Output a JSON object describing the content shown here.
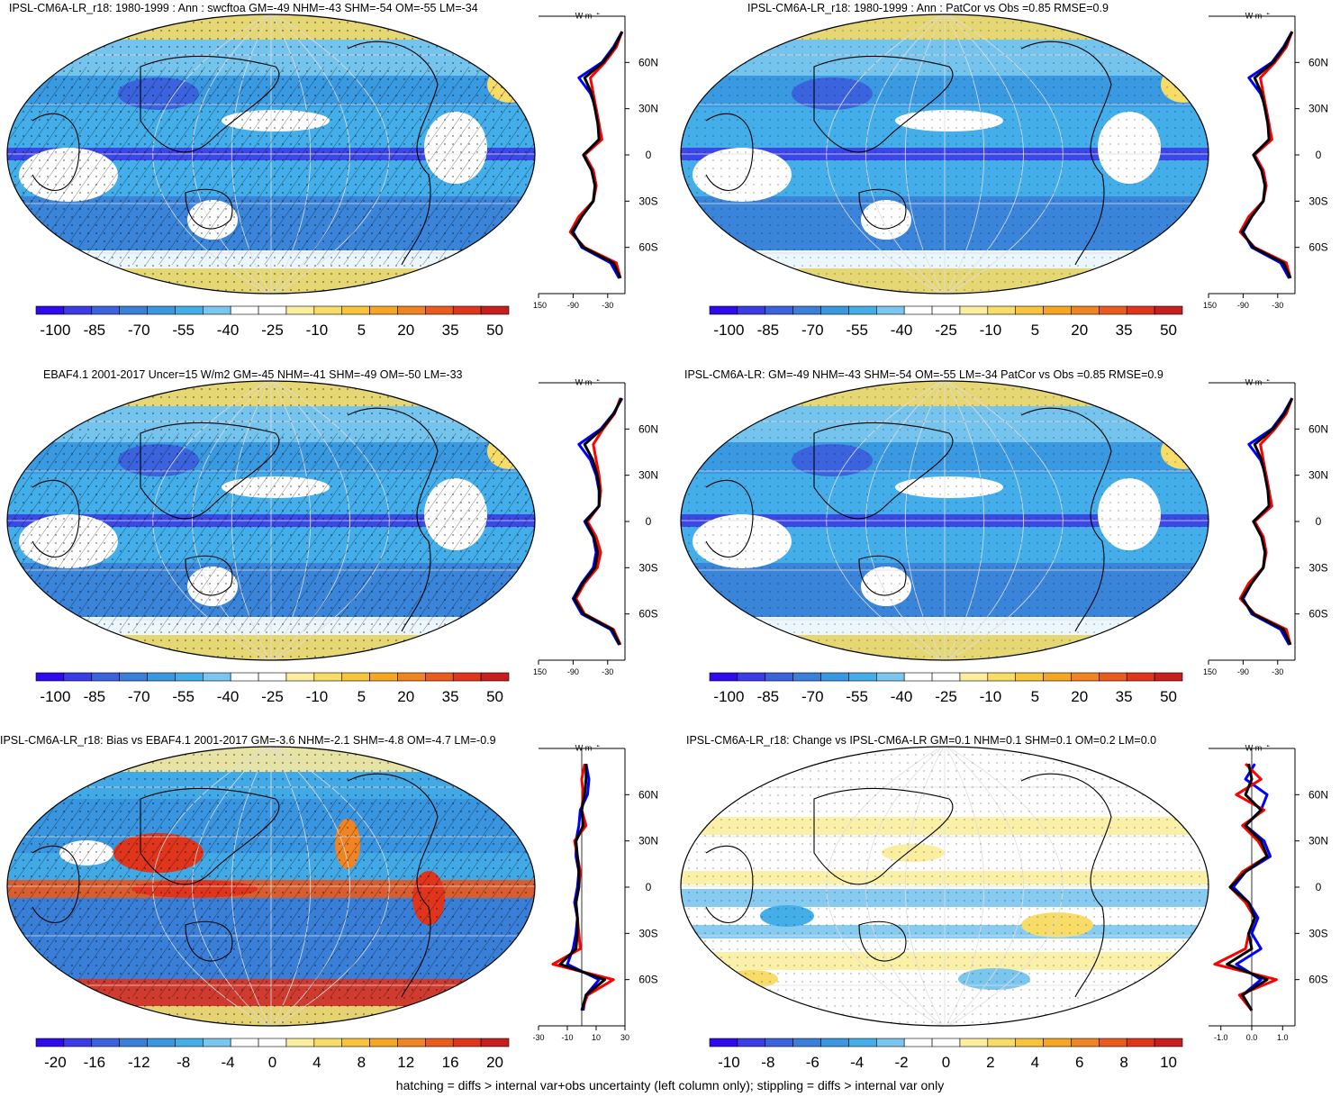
{
  "colors": {
    "ramp": [
      "#2e0aec",
      "#3b3ce6",
      "#3b63dd",
      "#3a7fd8",
      "#3a98e0",
      "#44aee9",
      "#7ac6ee",
      "#ffffff",
      "#ffffff",
      "#fbee9e",
      "#f8dc68",
      "#f8c43c",
      "#f5a623",
      "#f08322",
      "#ea5b1e",
      "#e0351d",
      "#c81e1e"
    ],
    "model_line": "#ff0000",
    "obs_line": "#0000ff",
    "mean_line": "#000000"
  },
  "footnote": "hatching = diffs > internal var+obs uncertainty (left column only); stippling = diffs > internal var only",
  "panels": [
    {
      "title": "IPSL-CM6A-LR_r18: 1980-1999 : Ann : swcftoa GM=-49 NHM=-43 SHM=-54 OM=-55 LM=-34",
      "unit": "W m",
      "unit_sup": "-2",
      "lat_labels": [
        "60N",
        "30N",
        "0",
        "30S",
        "60S"
      ],
      "x_ticks": [
        "-150",
        "-90",
        "-30"
      ],
      "cbar_labels": [
        "-100",
        "-85",
        "-70",
        "-55",
        "-40",
        "-25",
        "-10",
        "5",
        "20",
        "35",
        "50"
      ]
    },
    {
      "title": "IPSL-CM6A-LR_r18: 1980-1999 : Ann : PatCor vs Obs =0.85 RMSE=0.9",
      "unit": "W m",
      "unit_sup": "-2",
      "lat_labels": [
        "60N",
        "30N",
        "0",
        "30S",
        "60S"
      ],
      "x_ticks": [
        "-150",
        "-90",
        "-30"
      ],
      "cbar_labels": [
        "-100",
        "-85",
        "-70",
        "-55",
        "-40",
        "-25",
        "-10",
        "5",
        "20",
        "35",
        "50"
      ]
    },
    {
      "title": "EBAF4.1 2001-2017 Uncer=15 W/m2 GM=-45 NHM=-41 SHM=-49 OM=-50 LM=-33",
      "unit": "W m",
      "unit_sup": "-2",
      "lat_labels": [
        "60N",
        "30N",
        "0",
        "30S",
        "60S"
      ],
      "x_ticks": [
        "-150",
        "-90",
        "-30"
      ],
      "cbar_labels": [
        "-100",
        "-85",
        "-70",
        "-55",
        "-40",
        "-25",
        "-10",
        "5",
        "20",
        "35",
        "50"
      ]
    },
    {
      "title": "IPSL-CM6A-LR: GM=-49 NHM=-43 SHM=-54 OM=-55 LM=-34 PatCor vs Obs =0.85 RMSE=0.9",
      "unit": "W m",
      "unit_sup": "-2",
      "lat_labels": [
        "60N",
        "30N",
        "0",
        "30S",
        "60S"
      ],
      "x_ticks": [
        "-150",
        "-90",
        "-30"
      ],
      "cbar_labels": [
        "-100",
        "-85",
        "-70",
        "-55",
        "-40",
        "-25",
        "-10",
        "5",
        "20",
        "35",
        "50"
      ]
    },
    {
      "title": "IPSL-CM6A-LR_r18: Bias vs EBAF4.1 2001-2017 GM=-3.6 NHM=-2.1 SHM=-4.8 OM=-4.7 LM=-0.9",
      "unit": "W m",
      "unit_sup": "-2",
      "lat_labels": [
        "60N",
        "30N",
        "0",
        "30S",
        "60S"
      ],
      "x_ticks": [
        "-30",
        "-10",
        "10",
        "30"
      ],
      "cbar_labels": [
        "-20",
        "-16",
        "-12",
        "-8",
        "-4",
        "0",
        "4",
        "8",
        "12",
        "16",
        "20"
      ]
    },
    {
      "title": "IPSL-CM6A-LR_r18: Change vs IPSL-CM6A-LR GM=0.1 NHM=0.1 SHM=0.1 OM=0.2 LM=0.0",
      "unit": "W m",
      "unit_sup": "-2",
      "lat_labels": [
        "60N",
        "30N",
        "0",
        "30S",
        "60S"
      ],
      "x_ticks": [
        "-1.0",
        "0.0",
        "1.0"
      ],
      "cbar_labels": [
        "-10",
        "-8",
        "-6",
        "-4",
        "-2",
        "0",
        "2",
        "4",
        "6",
        "8",
        "10"
      ]
    }
  ],
  "chart_data": [
    {
      "type": "heatmap",
      "panel": 1,
      "title": "IPSL-CM6A-LR_r18: 1980-1999 : Ann : swcftoa GM=-49 NHM=-43 SHM=-54 OM=-55 LM=-34",
      "colorbar_range": [
        -100,
        50
      ],
      "colorbar_ticks": [
        -100,
        -85,
        -70,
        -55,
        -40,
        -25,
        -10,
        5,
        20,
        35,
        50
      ],
      "zonal_mean": {
        "xlim": [
          -150,
          0
        ],
        "lat": [
          80,
          70,
          60,
          50,
          40,
          30,
          20,
          10,
          0,
          -10,
          -20,
          -30,
          -40,
          -50,
          -60,
          -70,
          -80
        ],
        "model": [
          -5,
          -15,
          -35,
          -60,
          -55,
          -50,
          -45,
          -40,
          -70,
          -55,
          -50,
          -55,
          -80,
          -95,
          -70,
          -15,
          -8
        ],
        "obs": [
          -5,
          -20,
          -40,
          -80,
          -60,
          -50,
          -45,
          -45,
          -70,
          -55,
          -50,
          -55,
          -75,
          -90,
          -75,
          -25,
          -10
        ],
        "mean": [
          -5,
          -18,
          -38,
          -70,
          -58,
          -52,
          -47,
          -45,
          -72,
          -58,
          -52,
          -55,
          -75,
          -92,
          -72,
          -20,
          -8
        ]
      }
    },
    {
      "type": "heatmap",
      "panel": 2,
      "title": "IPSL-CM6A-LR_r18: 1980-1999 : Ann : PatCor vs Obs =0.85 RMSE=0.9",
      "colorbar_range": [
        -100,
        50
      ],
      "colorbar_ticks": [
        -100,
        -85,
        -70,
        -55,
        -40,
        -25,
        -10,
        5,
        20,
        35,
        50
      ],
      "zonal_mean": {
        "xlim": [
          -150,
          0
        ],
        "lat": [
          80,
          70,
          60,
          50,
          40,
          30,
          20,
          10,
          0,
          -10,
          -20,
          -30,
          -40,
          -50,
          -60,
          -70,
          -80
        ],
        "model": [
          -5,
          -15,
          -35,
          -60,
          -55,
          -50,
          -45,
          -40,
          -70,
          -55,
          -50,
          -55,
          -80,
          -95,
          -70,
          -15,
          -8
        ],
        "obs": [
          -5,
          -20,
          -40,
          -80,
          -60,
          -50,
          -45,
          -45,
          -70,
          -55,
          -50,
          -55,
          -75,
          -90,
          -75,
          -25,
          -10
        ],
        "mean": [
          -5,
          -18,
          -38,
          -70,
          -58,
          -52,
          -47,
          -45,
          -72,
          -58,
          -52,
          -55,
          -75,
          -92,
          -72,
          -20,
          -8
        ]
      }
    },
    {
      "type": "heatmap",
      "panel": 3,
      "title": "EBAF4.1 2001-2017 Uncer=15 W/m2 GM=-45 NHM=-41 SHM=-49 OM=-50 LM=-33",
      "colorbar_range": [
        -100,
        50
      ],
      "colorbar_ticks": [
        -100,
        -85,
        -70,
        -55,
        -40,
        -25,
        -10,
        5,
        20,
        35,
        50
      ],
      "zonal_mean": {
        "xlim": [
          -150,
          0
        ],
        "lat": [
          80,
          70,
          60,
          50,
          40,
          30,
          20,
          10,
          0,
          -10,
          -20,
          -30,
          -40,
          -50,
          -60,
          -70,
          -80
        ],
        "model": [
          -8,
          -18,
          -38,
          -55,
          -50,
          -45,
          -42,
          -45,
          -65,
          -50,
          -42,
          -48,
          -70,
          -85,
          -70,
          -20,
          -8
        ],
        "obs": [
          -5,
          -20,
          -42,
          -80,
          -60,
          -50,
          -45,
          -45,
          -70,
          -55,
          -50,
          -55,
          -75,
          -90,
          -75,
          -25,
          -10
        ],
        "mean": [
          -6,
          -19,
          -40,
          -70,
          -56,
          -48,
          -44,
          -45,
          -68,
          -54,
          -47,
          -52,
          -73,
          -88,
          -72,
          -22,
          -9
        ]
      }
    },
    {
      "type": "heatmap",
      "panel": 4,
      "title": "IPSL-CM6A-LR: GM=-49 NHM=-43 SHM=-54 OM=-55 LM=-34 PatCor vs Obs =0.85 RMSE=0.9",
      "colorbar_range": [
        -100,
        50
      ],
      "colorbar_ticks": [
        -100,
        -85,
        -70,
        -55,
        -40,
        -25,
        -10,
        5,
        20,
        35,
        50
      ],
      "zonal_mean": {
        "xlim": [
          -150,
          0
        ],
        "lat": [
          80,
          70,
          60,
          50,
          40,
          30,
          20,
          10,
          0,
          -10,
          -20,
          -30,
          -40,
          -50,
          -60,
          -70,
          -80
        ],
        "model": [
          -5,
          -15,
          -35,
          -60,
          -55,
          -50,
          -45,
          -40,
          -70,
          -55,
          -50,
          -55,
          -80,
          -95,
          -70,
          -15,
          -8
        ],
        "obs": [
          -5,
          -20,
          -40,
          -80,
          -60,
          -50,
          -45,
          -45,
          -70,
          -55,
          -50,
          -55,
          -75,
          -90,
          -75,
          -25,
          -10
        ],
        "mean": [
          -5,
          -18,
          -38,
          -70,
          -58,
          -52,
          -47,
          -45,
          -72,
          -58,
          -52,
          -55,
          -75,
          -92,
          -72,
          -20,
          -8
        ]
      }
    },
    {
      "type": "heatmap",
      "panel": 5,
      "title": "IPSL-CM6A-LR_r18: Bias vs EBAF4.1 2001-2017 GM=-3.6 NHM=-2.1 SHM=-4.8 OM=-4.7 LM=-0.9",
      "colorbar_range": [
        -22,
        22
      ],
      "colorbar_ticks": [
        -20,
        -16,
        -12,
        -8,
        -4,
        0,
        4,
        8,
        12,
        16,
        20
      ],
      "zonal_mean": {
        "xlim": [
          -30,
          30
        ],
        "lat": [
          80,
          70,
          60,
          50,
          40,
          30,
          20,
          10,
          0,
          -10,
          -20,
          -30,
          -40,
          -50,
          -60,
          -70,
          -80
        ],
        "model": [
          2,
          0,
          1,
          0,
          3,
          -5,
          -3,
          -1,
          -2,
          -4,
          -3,
          -2,
          -1,
          -20,
          22,
          4,
          0
        ],
        "obs": [
          3,
          5,
          4,
          -1,
          -2,
          -4,
          -4,
          -2,
          -3,
          -5,
          -3,
          -4,
          -6,
          -10,
          12,
          3,
          1
        ],
        "mean": [
          3,
          3,
          2,
          0,
          1,
          -4,
          -3,
          -2,
          -2,
          -4,
          -3,
          -3,
          -4,
          -15,
          16,
          3,
          0
        ]
      }
    },
    {
      "type": "heatmap",
      "panel": 6,
      "title": "IPSL-CM6A-LR_r18: Change vs IPSL-CM6A-LR GM=0.1 NHM=0.1 SHM=0.1 OM=0.2 LM=0.0",
      "colorbar_range": [
        -11,
        11
      ],
      "colorbar_ticks": [
        -10,
        -8,
        -6,
        -4,
        -2,
        0,
        2,
        4,
        6,
        8,
        10
      ],
      "zonal_mean": {
        "xlim": [
          -1.4,
          1.4
        ],
        "lat": [
          80,
          70,
          60,
          50,
          40,
          30,
          20,
          10,
          0,
          -10,
          -20,
          -30,
          -40,
          -50,
          -60,
          -70,
          -80
        ],
        "model": [
          -0.2,
          0.3,
          -0.5,
          0.4,
          -0.3,
          0.2,
          0.5,
          -0.3,
          -0.7,
          -0.2,
          0.1,
          -0.1,
          -0.2,
          -1.2,
          0.8,
          -0.4,
          0.0
        ],
        "obs": [
          0.1,
          -0.2,
          0.5,
          0.3,
          -0.2,
          0.4,
          0.6,
          -0.2,
          -0.6,
          -0.1,
          0.2,
          0.0,
          0.3,
          -0.5,
          0.3,
          -0.3,
          0.0
        ],
        "mean": [
          -0.1,
          0.0,
          -0.2,
          0.3,
          -0.2,
          0.3,
          0.5,
          -0.2,
          -0.7,
          -0.1,
          0.1,
          -0.1,
          0.0,
          -0.8,
          0.5,
          -0.3,
          0.0
        ]
      }
    }
  ]
}
